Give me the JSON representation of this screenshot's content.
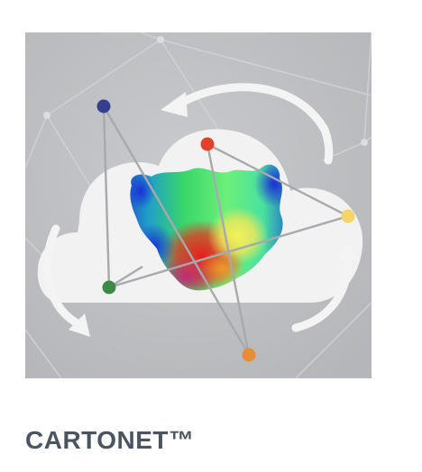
{
  "product": {
    "name": "CARTONET™"
  },
  "illustration": {
    "description_icon": "cloud-network-molecule-icon",
    "colors": {
      "background": "#bcbec1",
      "cloud": "#f2f2f2",
      "lines": "#a9abae",
      "node_navy": "#34408e",
      "node_red": "#e2412b",
      "node_yellow": "#f5d469",
      "node_green": "#3d8a48",
      "node_orange": "#e88d36"
    }
  }
}
